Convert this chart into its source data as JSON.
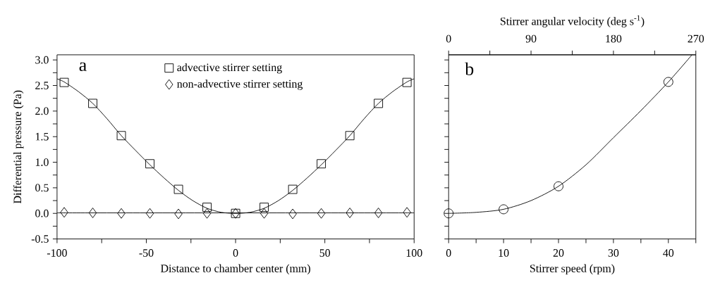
{
  "chart_data": [
    {
      "type": "scatter",
      "xlabel": "Distance to chamber center (mm)",
      "ylabel": "Differential pressure (Pa)",
      "annotations": [
        "a"
      ],
      "xlim": [
        -100,
        100
      ],
      "ylim": [
        -0.5,
        3.1
      ],
      "xticks": [
        -100,
        {
          "value": -75,
          "label": null
        },
        -50,
        {
          "value": -25,
          "label": null
        },
        0,
        {
          "value": 25,
          "label": null
        },
        50,
        {
          "value": 75,
          "label": null
        },
        100
      ],
      "yticks": [
        -0.5,
        {
          "value": -0.25,
          "label": null
        },
        {
          "value": 0.0,
          "label": "0.0"
        },
        {
          "value": 0.25,
          "label": null
        },
        {
          "value": 0.5,
          "label": "0.5"
        },
        {
          "value": 0.75,
          "label": null
        },
        {
          "value": 1.0,
          "label": "1.0"
        },
        {
          "value": 1.25,
          "label": null
        },
        {
          "value": 1.5,
          "label": "1.5"
        },
        {
          "value": 1.75,
          "label": null
        },
        {
          "value": 2.0,
          "label": "2.0"
        },
        {
          "value": 2.25,
          "label": null
        },
        {
          "value": 2.5,
          "label": "2.5"
        },
        {
          "value": 2.75,
          "label": null
        },
        {
          "value": 3.0,
          "label": "3.0"
        }
      ],
      "legend": "top",
      "series": [
        {
          "name": "advective stirrer setting",
          "marker": "square",
          "color": "#000000",
          "x": [
            -96,
            -80,
            -64,
            -48,
            -32,
            -16,
            0,
            16,
            32,
            48,
            64,
            80,
            96
          ],
          "values": [
            2.56,
            2.15,
            1.52,
            0.97,
            0.47,
            0.12,
            0.0,
            0.12,
            0.47,
            0.97,
            1.52,
            2.15,
            2.56
          ]
        },
        {
          "name": "non-advective stirrer setting",
          "marker": "diamond",
          "color": "#000000",
          "x": [
            -96,
            -80,
            -64,
            -48,
            -32,
            -16,
            0,
            16,
            32,
            48,
            64,
            80,
            96
          ],
          "values": [
            0.02,
            0.01,
            0.0,
            0.0,
            -0.01,
            0.0,
            0.0,
            0.0,
            -0.01,
            0.0,
            0.01,
            0.01,
            0.02
          ]
        },
        {
          "type": "line",
          "marker": "none",
          "color": "#000000",
          "x": [
            -100,
            -96,
            -88,
            -80,
            -72,
            -64,
            -56,
            -48,
            -40,
            -32,
            -24,
            -16,
            -8,
            0,
            8,
            16,
            24,
            32,
            40,
            48,
            56,
            64,
            72,
            80,
            88,
            96,
            100
          ],
          "values": [
            2.63,
            2.57,
            2.38,
            2.15,
            1.85,
            1.52,
            1.23,
            0.95,
            0.69,
            0.45,
            0.25,
            0.1,
            0.02,
            0.0,
            0.02,
            0.1,
            0.25,
            0.45,
            0.69,
            0.95,
            1.23,
            1.52,
            1.85,
            2.15,
            2.38,
            2.57,
            2.63
          ]
        },
        {
          "type": "line",
          "marker": "none",
          "color": "#000000",
          "x": [
            -100,
            100
          ],
          "values": [
            0.01,
            0.01
          ]
        }
      ]
    },
    {
      "type": "scatter",
      "xlabel": "Stirrer speed (rpm)",
      "x2label": "Stirrer angular velocity (deg s$^{-1}$)",
      "annotations": [
        "b"
      ],
      "xlim": [
        0,
        45
      ],
      "ylim": [
        -0.5,
        3.1
      ],
      "xticks": [
        0,
        {
          "value": 5,
          "label": null
        },
        10,
        {
          "value": 15,
          "label": null
        },
        20,
        {
          "value": 25,
          "label": null
        },
        30,
        {
          "value": 35,
          "label": null
        },
        40,
        {
          "value": 45,
          "label": null
        }
      ],
      "x2lim": [
        0,
        270
      ],
      "x2ticks": [
        0,
        {
          "value": 45,
          "label": null
        },
        90,
        {
          "value": 135,
          "label": null
        },
        180,
        {
          "value": 225,
          "label": null
        },
        270
      ],
      "yticks": [
        -0.5,
        -0.25,
        0.0,
        0.25,
        0.5,
        0.75,
        1.0,
        1.25,
        1.5,
        1.75,
        2.0,
        2.25,
        2.5,
        2.75,
        3.0
      ],
      "tick_labels": "x",
      "series": [
        {
          "marker": "circle",
          "color": "#000000",
          "x": [
            0,
            10,
            20,
            40
          ],
          "values": [
            0.0,
            0.08,
            0.53,
            2.57
          ]
        },
        {
          "type": "line",
          "marker": "none",
          "color": "#000000",
          "x": [
            0,
            5,
            10,
            15,
            20,
            25,
            30,
            35,
            40,
            44.3
          ],
          "values": [
            0.0,
            0.02,
            0.08,
            0.25,
            0.53,
            0.95,
            1.48,
            2.01,
            2.57,
            3.1
          ]
        }
      ]
    }
  ]
}
